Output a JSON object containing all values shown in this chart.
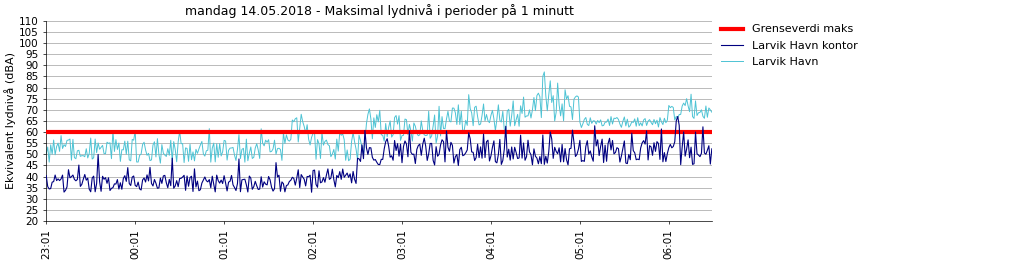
{
  "title": "mandag 14.05.2018 - Maksimal lydnivå i perioder på 1 minutt",
  "ylabel": "Ekvivalent lydnivå (dBA)",
  "ylim": [
    20,
    110
  ],
  "yticks": [
    20,
    25,
    30,
    35,
    40,
    45,
    50,
    55,
    60,
    65,
    70,
    75,
    80,
    85,
    90,
    95,
    100,
    105,
    110
  ],
  "xtick_labels": [
    "23:01",
    "00:01",
    "01:01",
    "02:01",
    "03:01",
    "04:01",
    "05:01",
    "06:01"
  ],
  "grenseverdi_value": 60,
  "grenseverdi_color": "#ff0000",
  "line_kontor_color": "#000080",
  "line_havn_color": "#4dc3d4",
  "legend_labels": [
    "Grenseverdi maks",
    "Larvik Havn kontor",
    "Larvik Havn"
  ],
  "background_color": "#ffffff",
  "grid_color": "#b0b0b0",
  "title_fontsize": 9,
  "label_fontsize": 8,
  "tick_fontsize": 7.5,
  "legend_fontsize": 8,
  "figsize": [
    10.23,
    2.63
  ],
  "dpi": 100,
  "n_points": 450,
  "xtick_pos": [
    0,
    60,
    120,
    180,
    240,
    300,
    360,
    420
  ]
}
